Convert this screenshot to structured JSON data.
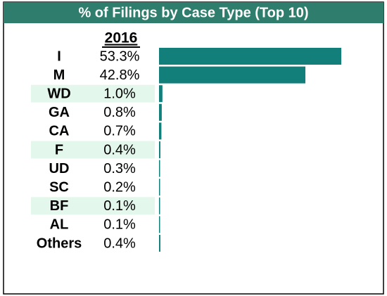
{
  "chart_data": {
    "type": "bar",
    "orientation": "horizontal",
    "title": "% of Filings by Case Type (Top 10)",
    "column_header": "2016",
    "categories": [
      "I",
      "M",
      "WD",
      "GA",
      "CA",
      "F",
      "UD",
      "SC",
      "BF",
      "AL",
      "Others"
    ],
    "values": [
      53.3,
      42.8,
      1.0,
      0.8,
      0.7,
      0.4,
      0.3,
      0.2,
      0.1,
      0.1,
      0.4
    ],
    "value_labels": [
      "53.3%",
      "42.8%",
      "1.0%",
      "0.8%",
      "0.7%",
      "0.4%",
      "0.3%",
      "0.2%",
      "0.1%",
      "0.1%",
      "0.4%"
    ],
    "color": "#137f7b"
  }
}
